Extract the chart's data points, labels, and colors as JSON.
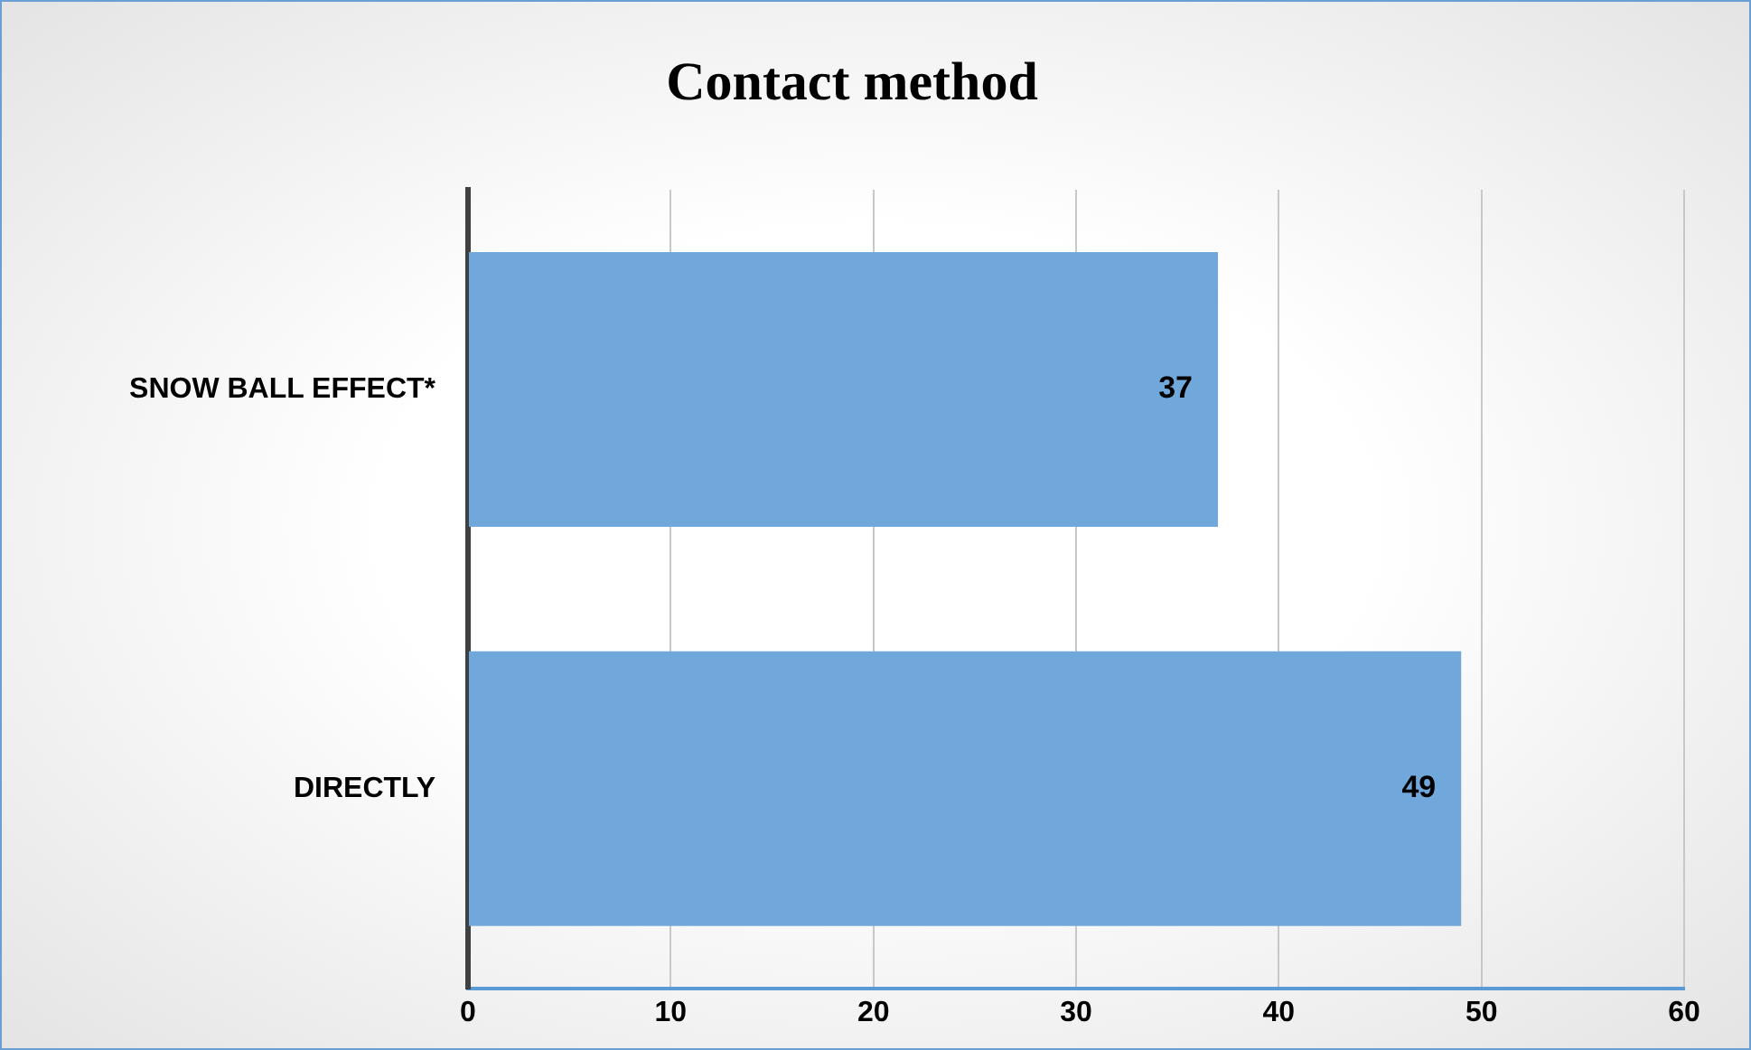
{
  "chart_data": {
    "type": "bar",
    "orientation": "horizontal",
    "title": "Contact method",
    "categories": [
      "SNOW BALL EFFECT*",
      "DIRECTLY"
    ],
    "values": [
      37,
      49
    ],
    "color": "#70a8dc",
    "xlim": [
      0,
      60
    ],
    "xticks": [
      0,
      10,
      20,
      30,
      40,
      50,
      60
    ],
    "grid": "x",
    "data_labels": true
  }
}
